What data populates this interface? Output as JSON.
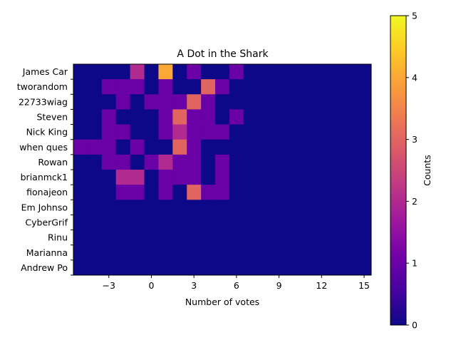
{
  "chart_data": {
    "type": "heatmap",
    "title": "A Dot in the Shark",
    "xlabel": "Number of votes",
    "ylabel": "",
    "x_bin_edges": [
      -5.5,
      -4.5,
      -3.5,
      -2.5,
      -1.5,
      -0.5,
      0.5,
      1.5,
      2.5,
      3.5,
      4.5,
      5.5,
      6.5,
      7.5,
      8.5,
      9.5,
      10.5,
      11.5,
      12.5,
      13.5,
      14.5,
      15.5
    ],
    "xlim": [
      -5.5,
      15.5
    ],
    "xticks": [
      -3,
      0,
      3,
      6,
      9,
      12,
      15
    ],
    "rows": [
      "James Car",
      "tworandom",
      "22733wiag",
      "Steven",
      "Nick King",
      "when ques",
      "Rowan",
      "brianmck1",
      "fionajeon",
      "Em Johnso",
      "CyberGrif",
      "Rinu",
      "Marianna ",
      "Andrew Po"
    ],
    "values": [
      [
        0,
        0,
        0,
        0,
        2,
        0,
        4,
        0,
        1,
        0,
        0,
        1,
        0,
        0,
        0,
        0,
        0,
        0,
        0,
        0,
        0
      ],
      [
        0,
        0,
        1,
        1,
        1,
        0,
        1,
        0,
        0,
        3,
        1,
        0,
        0,
        0,
        0,
        0,
        0,
        0,
        0,
        0,
        0
      ],
      [
        0,
        0,
        0,
        1,
        0,
        1,
        1,
        1,
        3,
        1,
        0,
        0,
        0,
        0,
        0,
        0,
        0,
        0,
        0,
        0,
        0
      ],
      [
        0,
        0,
        1,
        0,
        0,
        0,
        1,
        3,
        1,
        1,
        0,
        1,
        0,
        0,
        0,
        0,
        0,
        0,
        0,
        0,
        0
      ],
      [
        0,
        0,
        1,
        1,
        0,
        0,
        1,
        2,
        1,
        1,
        1,
        0,
        0,
        0,
        0,
        0,
        0,
        0,
        0,
        0,
        0
      ],
      [
        1,
        1,
        1,
        0,
        1,
        0,
        0,
        3,
        1,
        0,
        0,
        0,
        0,
        0,
        0,
        0,
        0,
        0,
        0,
        0,
        0
      ],
      [
        0,
        0,
        1,
        1,
        0,
        1,
        2,
        1,
        1,
        0,
        1,
        0,
        0,
        0,
        0,
        0,
        0,
        0,
        0,
        0,
        0
      ],
      [
        0,
        0,
        0,
        2,
        2,
        0,
        1,
        1,
        1,
        0,
        1,
        0,
        0,
        0,
        0,
        0,
        0,
        0,
        0,
        0,
        0
      ],
      [
        0,
        0,
        0,
        1,
        1,
        0,
        1,
        0,
        3,
        1,
        1,
        0,
        0,
        0,
        0,
        0,
        0,
        0,
        0,
        0,
        0
      ],
      [
        0,
        0,
        0,
        0,
        0,
        0,
        0,
        0,
        0,
        0,
        0,
        0,
        0,
        0,
        0,
        0,
        0,
        0,
        0,
        0,
        0
      ],
      [
        0,
        0,
        0,
        0,
        0,
        0,
        0,
        0,
        0,
        0,
        0,
        0,
        0,
        0,
        0,
        0,
        0,
        0,
        0,
        0,
        0
      ],
      [
        0,
        0,
        0,
        0,
        0,
        0,
        0,
        0,
        0,
        0,
        0,
        0,
        0,
        0,
        0,
        0,
        0,
        0,
        0,
        0,
        0
      ],
      [
        0,
        0,
        0,
        0,
        0,
        0,
        0,
        0,
        0,
        0,
        0,
        0,
        0,
        0,
        0,
        0,
        0,
        0,
        0,
        0,
        0
      ],
      [
        0,
        0,
        0,
        0,
        0,
        0,
        0,
        0,
        0,
        0,
        0,
        0,
        0,
        0,
        0,
        0,
        0,
        0,
        0,
        0,
        0
      ]
    ],
    "colormap": "plasma",
    "colorbar": {
      "label": "Counts",
      "range": [
        0,
        5
      ],
      "ticks": [
        0,
        1,
        2,
        3,
        4,
        5
      ]
    },
    "grid": false
  }
}
